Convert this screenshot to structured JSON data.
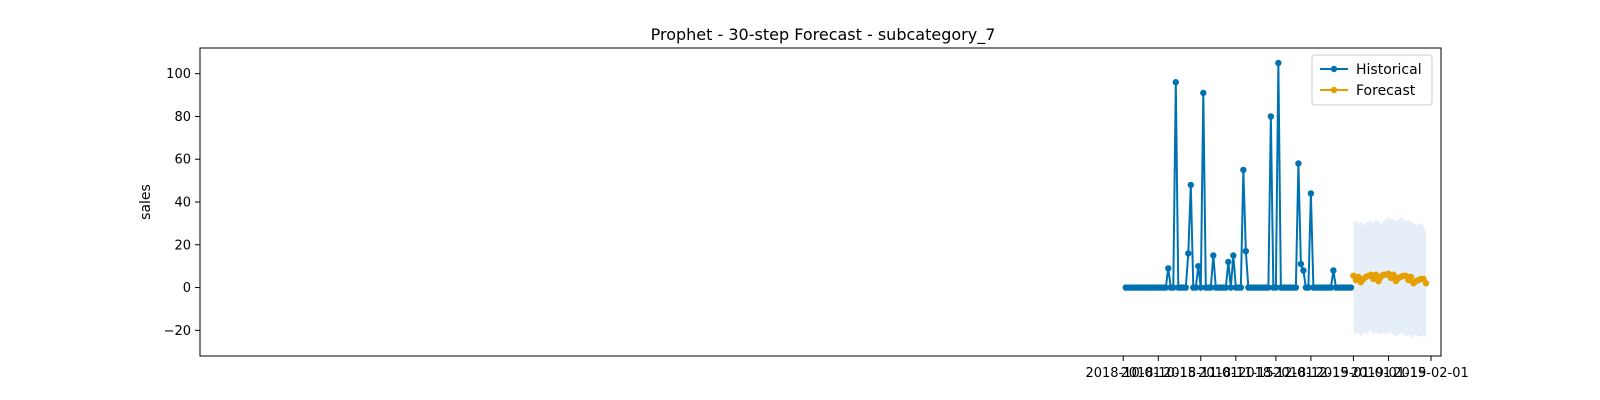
{
  "chart_data": {
    "type": "line",
    "title": "Prophet - 30-step Forecast - subcategory_7",
    "xlabel": "",
    "ylabel": "sales",
    "x_axis_type": "date",
    "xlim": [
      "2017-09-27",
      "2019-02-05"
    ],
    "ylim": [
      -32,
      112
    ],
    "grid": false,
    "legend_position": "top-right",
    "x_ticks": [
      "2018-10-01",
      "2018-10-15",
      "2018-11-01",
      "2018-11-15",
      "2018-12-01",
      "2018-12-15",
      "2019-01-01",
      "2019-01-15",
      "2019-02-01"
    ],
    "y_ticks": [
      -20,
      0,
      20,
      40,
      60,
      80,
      100
    ],
    "series": [
      {
        "name": "Historical",
        "color": "#0072B2",
        "marker": "circle",
        "x": [
          "2018-10-02",
          "2018-10-03",
          "2018-10-04",
          "2018-10-05",
          "2018-10-06",
          "2018-10-07",
          "2018-10-08",
          "2018-10-09",
          "2018-10-10",
          "2018-10-11",
          "2018-10-12",
          "2018-10-13",
          "2018-10-14",
          "2018-10-15",
          "2018-10-16",
          "2018-10-17",
          "2018-10-18",
          "2018-10-19",
          "2018-10-20",
          "2018-10-21",
          "2018-10-22",
          "2018-10-23",
          "2018-10-24",
          "2018-10-25",
          "2018-10-26",
          "2018-10-27",
          "2018-10-28",
          "2018-10-29",
          "2018-10-30",
          "2018-10-31",
          "2018-11-01",
          "2018-11-02",
          "2018-11-03",
          "2018-11-04",
          "2018-11-05",
          "2018-11-06",
          "2018-11-07",
          "2018-11-08",
          "2018-11-09",
          "2018-11-10",
          "2018-11-11",
          "2018-11-12",
          "2018-11-13",
          "2018-11-14",
          "2018-11-15",
          "2018-11-16",
          "2018-11-17",
          "2018-11-18",
          "2018-11-19",
          "2018-11-20",
          "2018-11-21",
          "2018-11-22",
          "2018-11-23",
          "2018-11-24",
          "2018-11-25",
          "2018-11-26",
          "2018-11-27",
          "2018-11-28",
          "2018-11-29",
          "2018-11-30",
          "2018-12-01",
          "2018-12-02",
          "2018-12-03",
          "2018-12-04",
          "2018-12-05",
          "2018-12-06",
          "2018-12-07",
          "2018-12-08",
          "2018-12-09",
          "2018-12-10",
          "2018-12-11",
          "2018-12-12",
          "2018-12-13",
          "2018-12-14",
          "2018-12-15",
          "2018-12-16",
          "2018-12-17",
          "2018-12-18",
          "2018-12-19",
          "2018-12-20",
          "2018-12-21",
          "2018-12-22",
          "2018-12-23",
          "2018-12-24",
          "2018-12-25",
          "2018-12-26",
          "2018-12-27",
          "2018-12-28",
          "2018-12-29",
          "2018-12-30",
          "2018-12-31"
        ],
        "values": [
          0,
          0,
          0,
          0,
          0,
          0,
          0,
          0,
          0,
          0,
          0,
          0,
          0,
          0,
          0,
          0,
          0,
          9,
          0,
          0,
          96,
          0,
          0,
          0,
          0,
          16,
          48,
          0,
          0,
          10,
          0,
          91,
          0,
          0,
          0,
          15,
          0,
          0,
          0,
          0,
          0,
          12,
          0,
          15,
          0,
          0,
          0,
          55,
          17,
          0,
          0,
          0,
          0,
          0,
          0,
          0,
          0,
          0,
          80,
          0,
          0,
          105,
          0,
          0,
          0,
          0,
          0,
          0,
          0,
          58,
          11,
          8,
          0,
          0,
          44,
          0,
          0,
          0,
          0,
          0,
          0,
          0,
          0,
          8,
          0,
          0,
          0,
          0,
          0,
          0,
          0
        ]
      },
      {
        "name": "Forecast",
        "color": "#E69F00",
        "marker": "circle",
        "x": [
          "2019-01-01",
          "2019-01-02",
          "2019-01-03",
          "2019-01-04",
          "2019-01-05",
          "2019-01-06",
          "2019-01-07",
          "2019-01-08",
          "2019-01-09",
          "2019-01-10",
          "2019-01-11",
          "2019-01-12",
          "2019-01-13",
          "2019-01-14",
          "2019-01-15",
          "2019-01-16",
          "2019-01-17",
          "2019-01-18",
          "2019-01-19",
          "2019-01-20",
          "2019-01-21",
          "2019-01-22",
          "2019-01-23",
          "2019-01-24",
          "2019-01-25",
          "2019-01-26",
          "2019-01-27",
          "2019-01-28",
          "2019-01-29",
          "2019-01-30"
        ],
        "values": [
          5.5,
          3.5,
          5,
          2.5,
          4,
          5,
          5.5,
          6,
          4,
          6,
          3,
          5,
          6,
          6,
          6.5,
          4.5,
          6,
          3,
          4.5,
          5,
          5.5,
          5.5,
          3.5,
          5,
          2,
          3,
          3.5,
          4,
          4,
          2
        ],
        "lower": [
          -20,
          -22,
          -21,
          -23,
          -21,
          -22,
          -21,
          -20,
          -22,
          -21,
          -21,
          -22,
          -21,
          -22,
          -21,
          -21,
          -22,
          -23,
          -22,
          -21,
          -22,
          -23,
          -22,
          -24,
          -22,
          -22,
          -23,
          -23,
          -22,
          -24
        ],
        "upper": [
          31,
          31,
          30,
          31,
          29,
          30,
          31,
          31,
          30,
          32,
          31,
          30,
          31,
          32,
          33,
          32,
          32,
          31,
          32,
          33,
          32,
          31,
          32,
          31,
          30,
          29,
          30,
          30,
          29,
          26
        ]
      }
    ]
  }
}
